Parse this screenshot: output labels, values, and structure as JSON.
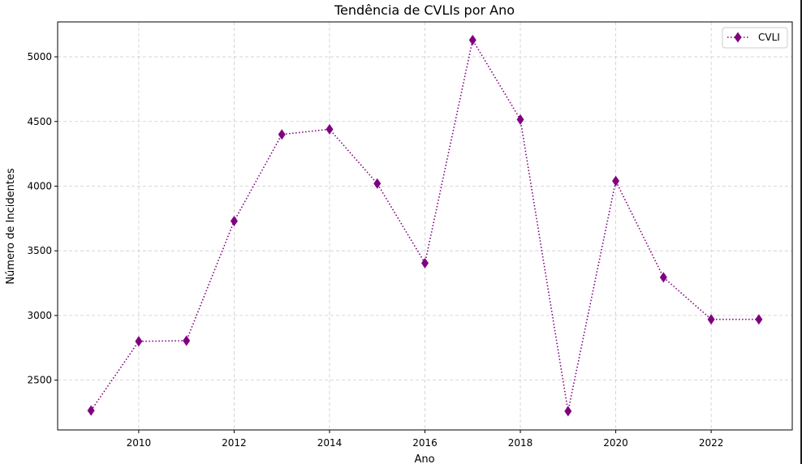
{
  "chart_data": {
    "type": "line",
    "title": "Tendência de CVLIs por Ano",
    "xlabel": "Ano",
    "ylabel": "Número de Incidentes",
    "xlim": [
      2008.3,
      2023.7
    ],
    "ylim": [
      2115,
      5270
    ],
    "x_ticks": [
      2010,
      2012,
      2014,
      2016,
      2018,
      2020,
      2022
    ],
    "y_ticks": [
      2500,
      3000,
      3500,
      4000,
      4500,
      5000
    ],
    "grid": true,
    "legend_position": "top-right",
    "line_style": "dotted",
    "marker": "diamond",
    "color": "#800080",
    "series": [
      {
        "name": "CVLI",
        "x": [
          2009,
          2010,
          2011,
          2012,
          2013,
          2014,
          2015,
          2016,
          2017,
          2018,
          2019,
          2020,
          2021,
          2022,
          2023
        ],
        "y": [
          2265,
          2800,
          2805,
          3730,
          4400,
          4440,
          4020,
          3405,
          5130,
          4515,
          2260,
          4040,
          3295,
          2970,
          2970
        ]
      }
    ]
  }
}
